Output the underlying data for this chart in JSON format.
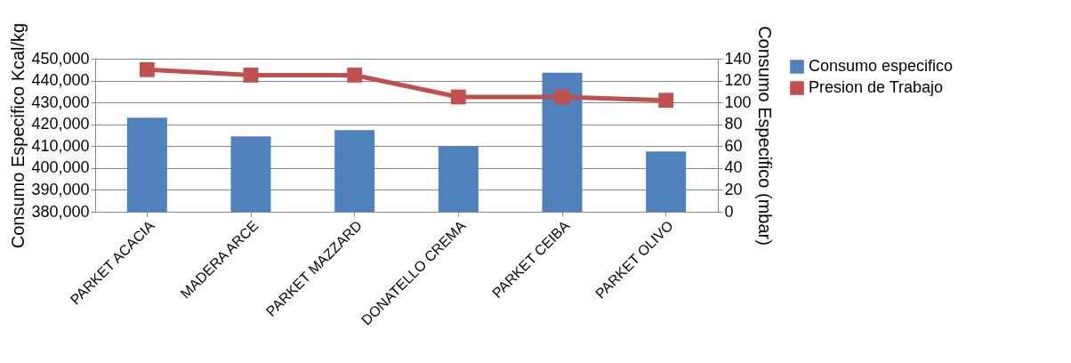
{
  "chart_data": {
    "type": "bar",
    "categories": [
      "PARKET ACACIA",
      "MADERA ARCE",
      "PARKET MAZZARD",
      "DONATELLO CREMA",
      "PARKET CEIBA",
      "PARKET OLIVO"
    ],
    "ylabel": "Consumo Especifico Kcal/kg",
    "y2label": "Consumo Especifico (mbar)",
    "ylim": [
      380000,
      450000
    ],
    "yticks": [
      {
        "value": 380000,
        "label": "380,000"
      },
      {
        "value": 390000,
        "label": "390,000"
      },
      {
        "value": 400000,
        "label": "400,000"
      },
      {
        "value": 410000,
        "label": "410,000"
      },
      {
        "value": 420000,
        "label": "420,000"
      },
      {
        "value": 430000,
        "label": "430,000"
      },
      {
        "value": 440000,
        "label": "440,000"
      },
      {
        "value": 450000,
        "label": "450,000"
      }
    ],
    "y2lim": [
      0,
      140
    ],
    "y2ticks": [
      0,
      20,
      40,
      60,
      80,
      100,
      120,
      140
    ],
    "grid": "y",
    "legend": "right",
    "series": [
      {
        "name": "Consumo especifico",
        "color": "#4f81bd",
        "values": [
          423000,
          414500,
          417300,
          410000,
          443600,
          407600
        ]
      },
      {
        "name": "Presion de Trabajo",
        "type": "line",
        "axis": "y2",
        "marker": "square",
        "color": "#c0504d",
        "values": [
          130,
          125,
          125,
          105,
          105,
          102
        ]
      }
    ]
  }
}
